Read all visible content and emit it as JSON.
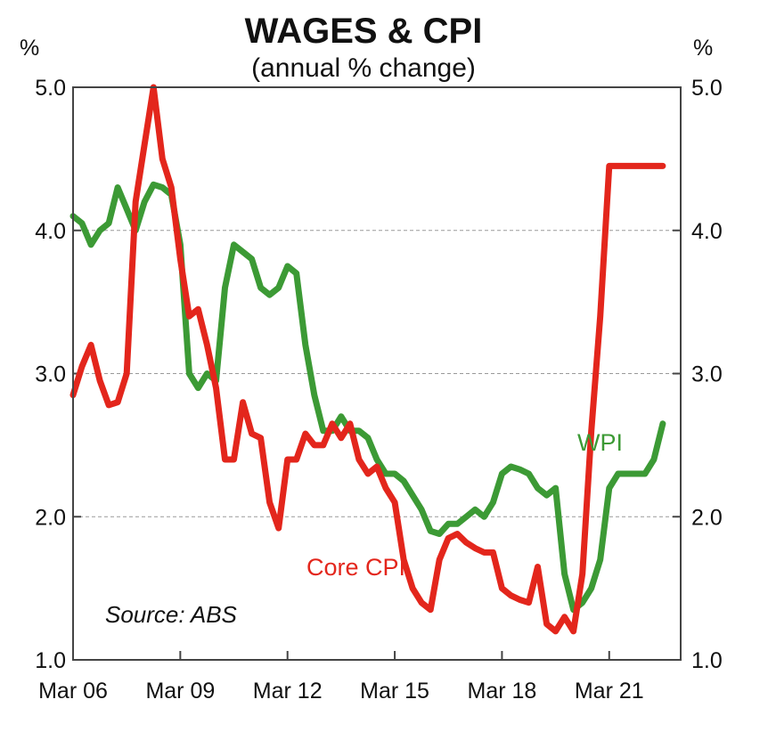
{
  "chart_data": {
    "type": "line",
    "title": "WAGES & CPI",
    "subtitle": "(annual % change)",
    "y_unit_left": "%",
    "y_unit_right": "%",
    "source": "Source: ABS",
    "ylim": [
      1.0,
      5.0
    ],
    "y_ticks": [
      "1.0",
      "2.0",
      "3.0",
      "4.0",
      "5.0"
    ],
    "x_ticks": [
      {
        "label": "Mar 06",
        "value": 2006.0
      },
      {
        "label": "Mar 09",
        "value": 2009.0
      },
      {
        "label": "Mar 12",
        "value": 2012.0
      },
      {
        "label": "Mar 15",
        "value": 2015.0
      },
      {
        "label": "Mar 18",
        "value": 2018.0
      },
      {
        "label": "Mar 21",
        "value": 2021.0
      }
    ],
    "xlim": [
      2006.0,
      2023.0
    ],
    "grid": true,
    "series": [
      {
        "name": "WPI",
        "color": "#3c9a35",
        "x": [
          2006.0,
          2006.25,
          2006.5,
          2006.75,
          2007.0,
          2007.25,
          2007.5,
          2007.75,
          2008.0,
          2008.25,
          2008.5,
          2008.75,
          2009.0,
          2009.25,
          2009.5,
          2009.75,
          2010.0,
          2010.25,
          2010.5,
          2010.75,
          2011.0,
          2011.25,
          2011.5,
          2011.75,
          2012.0,
          2012.25,
          2012.5,
          2012.75,
          2013.0,
          2013.25,
          2013.5,
          2013.75,
          2014.0,
          2014.25,
          2014.5,
          2014.75,
          2015.0,
          2015.25,
          2015.5,
          2015.75,
          2016.0,
          2016.25,
          2016.5,
          2016.75,
          2017.0,
          2017.25,
          2017.5,
          2017.75,
          2018.0,
          2018.25,
          2018.5,
          2018.75,
          2019.0,
          2019.25,
          2019.5,
          2019.75,
          2020.0,
          2020.25,
          2020.5,
          2020.75,
          2021.0,
          2021.25,
          2021.5,
          2021.75,
          2022.0,
          2022.25,
          2022.5
        ],
        "values": [
          4.1,
          4.05,
          3.9,
          4.0,
          4.05,
          4.3,
          4.15,
          4.0,
          4.2,
          4.32,
          4.3,
          4.25,
          3.9,
          3.0,
          2.9,
          3.0,
          2.95,
          3.6,
          3.9,
          3.85,
          3.8,
          3.6,
          3.55,
          3.6,
          3.75,
          3.7,
          3.2,
          2.85,
          2.6,
          2.6,
          2.7,
          2.6,
          2.6,
          2.55,
          2.4,
          2.3,
          2.3,
          2.25,
          2.15,
          2.05,
          1.9,
          1.88,
          1.95,
          1.95,
          2.0,
          2.05,
          2.0,
          2.1,
          2.3,
          2.35,
          2.33,
          2.3,
          2.2,
          2.15,
          2.2,
          1.6,
          1.35,
          1.4,
          1.5,
          1.7,
          2.2,
          2.3,
          2.3,
          2.3,
          2.3,
          2.4,
          2.65
        ]
      },
      {
        "name": "Core CPI",
        "color": "#e3261c",
        "x": [
          2006.0,
          2006.25,
          2006.5,
          2006.75,
          2007.0,
          2007.25,
          2007.5,
          2007.75,
          2008.0,
          2008.25,
          2008.5,
          2008.75,
          2009.0,
          2009.25,
          2009.5,
          2009.75,
          2010.0,
          2010.25,
          2010.5,
          2010.75,
          2011.0,
          2011.25,
          2011.5,
          2011.75,
          2012.0,
          2012.25,
          2012.5,
          2012.75,
          2013.0,
          2013.25,
          2013.5,
          2013.75,
          2014.0,
          2014.25,
          2014.5,
          2014.75,
          2015.0,
          2015.25,
          2015.5,
          2015.75,
          2016.0,
          2016.25,
          2016.5,
          2016.75,
          2017.0,
          2017.25,
          2017.5,
          2017.75,
          2018.0,
          2018.25,
          2018.5,
          2018.75,
          2019.0,
          2019.25,
          2019.5,
          2019.75,
          2020.0,
          2020.25,
          2020.5,
          2020.75,
          2021.0,
          2021.25,
          2021.5,
          2021.75,
          2022.0,
          2022.25,
          2022.5
        ],
        "values": [
          2.85,
          3.05,
          3.2,
          2.95,
          2.78,
          2.8,
          3.0,
          4.2,
          4.6,
          5.0,
          4.5,
          4.3,
          3.8,
          3.4,
          3.45,
          3.2,
          2.9,
          2.4,
          2.4,
          2.8,
          2.58,
          2.55,
          2.1,
          1.92,
          2.4,
          2.4,
          2.58,
          2.5,
          2.5,
          2.65,
          2.55,
          2.65,
          2.4,
          2.3,
          2.35,
          2.2,
          2.1,
          1.7,
          1.5,
          1.4,
          1.35,
          1.7,
          1.85,
          1.88,
          1.82,
          1.78,
          1.75,
          1.75,
          1.5,
          1.45,
          1.42,
          1.4,
          1.65,
          1.25,
          1.2,
          1.3,
          1.2,
          1.6,
          2.6,
          3.4,
          4.45,
          4.45,
          4.45,
          4.45,
          4.45,
          4.45,
          4.45
        ]
      }
    ]
  }
}
